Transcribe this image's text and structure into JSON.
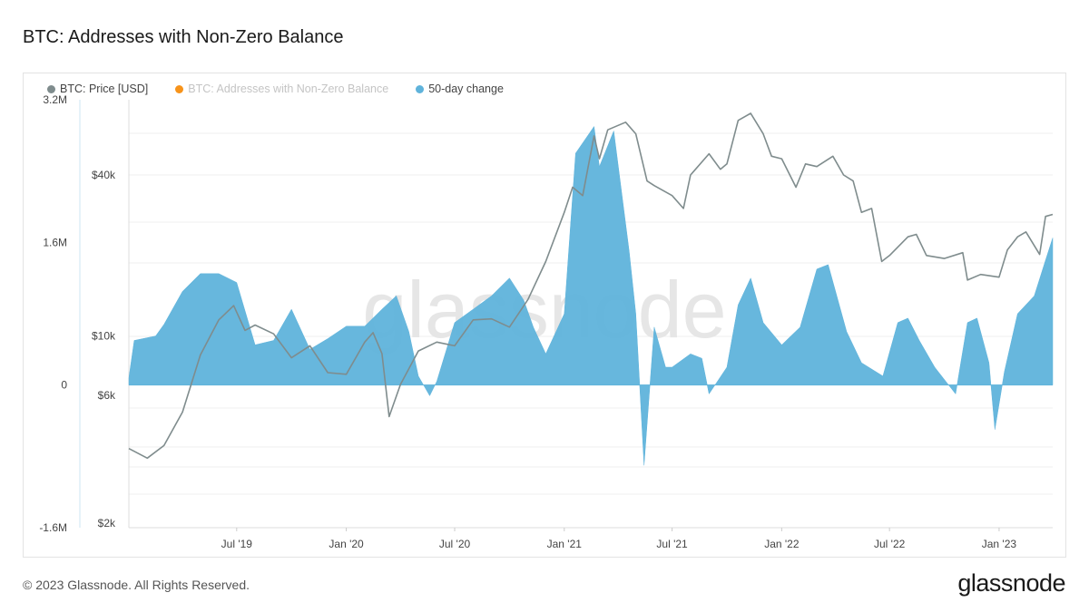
{
  "page": {
    "title": "BTC: Addresses with Non-Zero Balance",
    "copyright": "© 2023 Glassnode. All Rights Reserved.",
    "logo": "glassnode",
    "watermark": "glassnode"
  },
  "legend": [
    {
      "label": "BTC: Price [USD]",
      "color": "#7f8c8d",
      "state": "active"
    },
    {
      "label": "BTC: Addresses with Non-Zero Balance",
      "color": "#f7931a",
      "state": "hidden"
    },
    {
      "label": "50-day change",
      "color": "#5fb3db",
      "state": "active"
    }
  ],
  "chart_data": {
    "type": "area",
    "title": "BTC: Addresses with Non-Zero Balance",
    "x_range": [
      "2019-01-01",
      "2023-04-01"
    ],
    "x_ticks": [
      "Jul '19",
      "Jan '20",
      "Jul '20",
      "Jan '21",
      "Jul '21",
      "Jan '22",
      "Jul '22",
      "Jan '23"
    ],
    "y_left": {
      "ticks": [
        "-1.6M",
        "0",
        "1.6M",
        "3.2M"
      ],
      "tick_values": [
        -1600000,
        0,
        1600000,
        3200000
      ],
      "range": [
        -1600000,
        3200000
      ]
    },
    "y_right": {
      "scale": "log",
      "ticks": [
        "$2k",
        "$6k",
        "$10k",
        "$40k"
      ],
      "tick_values": [
        2000,
        6000,
        10000,
        40000
      ]
    },
    "series": [
      {
        "name": "BTC: Price [USD]",
        "axis": "right",
        "color": "#7f8c8d",
        "points": [
          [
            "2019-01-01",
            3800
          ],
          [
            "2019-02-01",
            3500
          ],
          [
            "2019-03-01",
            3900
          ],
          [
            "2019-04-01",
            5200
          ],
          [
            "2019-05-01",
            8500
          ],
          [
            "2019-06-01",
            11500
          ],
          [
            "2019-06-26",
            13000
          ],
          [
            "2019-07-15",
            10500
          ],
          [
            "2019-08-01",
            11000
          ],
          [
            "2019-09-01",
            10200
          ],
          [
            "2019-10-01",
            8300
          ],
          [
            "2019-11-01",
            9200
          ],
          [
            "2019-12-01",
            7300
          ],
          [
            "2020-01-01",
            7200
          ],
          [
            "2020-02-01",
            9500
          ],
          [
            "2020-02-15",
            10300
          ],
          [
            "2020-03-01",
            8600
          ],
          [
            "2020-03-13",
            5000
          ],
          [
            "2020-04-01",
            6600
          ],
          [
            "2020-05-01",
            8800
          ],
          [
            "2020-06-01",
            9500
          ],
          [
            "2020-07-01",
            9200
          ],
          [
            "2020-08-01",
            11500
          ],
          [
            "2020-09-01",
            11600
          ],
          [
            "2020-10-01",
            10800
          ],
          [
            "2020-11-01",
            13700
          ],
          [
            "2020-12-01",
            19000
          ],
          [
            "2021-01-01",
            29000
          ],
          [
            "2021-01-15",
            36000
          ],
          [
            "2021-02-01",
            33500
          ],
          [
            "2021-02-20",
            56000
          ],
          [
            "2021-03-01",
            46000
          ],
          [
            "2021-03-15",
            59000
          ],
          [
            "2021-04-14",
            63000
          ],
          [
            "2021-05-01",
            57000
          ],
          [
            "2021-05-20",
            38000
          ],
          [
            "2021-06-01",
            36500
          ],
          [
            "2021-07-01",
            33500
          ],
          [
            "2021-07-20",
            30000
          ],
          [
            "2021-08-01",
            40000
          ],
          [
            "2021-09-01",
            48000
          ],
          [
            "2021-09-20",
            42000
          ],
          [
            "2021-10-01",
            44000
          ],
          [
            "2021-10-20",
            64000
          ],
          [
            "2021-11-10",
            68000
          ],
          [
            "2021-12-01",
            57000
          ],
          [
            "2021-12-15",
            47000
          ],
          [
            "2022-01-01",
            46000
          ],
          [
            "2022-01-25",
            36000
          ],
          [
            "2022-02-10",
            44000
          ],
          [
            "2022-03-01",
            43000
          ],
          [
            "2022-03-28",
            47000
          ],
          [
            "2022-04-15",
            40000
          ],
          [
            "2022-05-01",
            38000
          ],
          [
            "2022-05-15",
            29000
          ],
          [
            "2022-06-01",
            30000
          ],
          [
            "2022-06-18",
            19000
          ],
          [
            "2022-07-01",
            20000
          ],
          [
            "2022-08-01",
            23500
          ],
          [
            "2022-08-15",
            24000
          ],
          [
            "2022-09-01",
            20000
          ],
          [
            "2022-10-01",
            19500
          ],
          [
            "2022-11-01",
            20500
          ],
          [
            "2022-11-09",
            16200
          ],
          [
            "2022-12-01",
            17000
          ],
          [
            "2023-01-01",
            16600
          ],
          [
            "2023-01-15",
            21000
          ],
          [
            "2023-02-01",
            23500
          ],
          [
            "2023-02-15",
            24500
          ],
          [
            "2023-03-10",
            20200
          ],
          [
            "2023-03-20",
            28000
          ],
          [
            "2023-04-01",
            28500
          ]
        ]
      },
      {
        "name": "50-day change",
        "axis": "left",
        "color": "#5fb3db",
        "points": [
          [
            "2019-01-01",
            80000
          ],
          [
            "2019-01-10",
            500000
          ],
          [
            "2019-02-15",
            550000
          ],
          [
            "2019-03-01",
            680000
          ],
          [
            "2019-04-01",
            1050000
          ],
          [
            "2019-05-01",
            1250000
          ],
          [
            "2019-06-01",
            1250000
          ],
          [
            "2019-07-01",
            1150000
          ],
          [
            "2019-08-01",
            450000
          ],
          [
            "2019-09-01",
            500000
          ],
          [
            "2019-10-01",
            850000
          ],
          [
            "2019-11-01",
            400000
          ],
          [
            "2019-12-01",
            520000
          ],
          [
            "2020-01-01",
            660000
          ],
          [
            "2020-02-01",
            660000
          ],
          [
            "2020-03-01",
            850000
          ],
          [
            "2020-03-25",
            1000000
          ],
          [
            "2020-04-15",
            600000
          ],
          [
            "2020-05-01",
            100000
          ],
          [
            "2020-05-20",
            -120000
          ],
          [
            "2020-06-01",
            40000
          ],
          [
            "2020-07-01",
            700000
          ],
          [
            "2020-08-01",
            850000
          ],
          [
            "2020-09-01",
            1000000
          ],
          [
            "2020-10-01",
            1200000
          ],
          [
            "2020-10-25",
            950000
          ],
          [
            "2020-11-10",
            650000
          ],
          [
            "2020-12-01",
            350000
          ],
          [
            "2021-01-01",
            800000
          ],
          [
            "2021-01-20",
            2600000
          ],
          [
            "2021-02-20",
            2900000
          ],
          [
            "2021-03-01",
            2450000
          ],
          [
            "2021-03-25",
            2850000
          ],
          [
            "2021-04-20",
            1500000
          ],
          [
            "2021-05-01",
            800000
          ],
          [
            "2021-05-15",
            -900000
          ],
          [
            "2021-06-01",
            650000
          ],
          [
            "2021-06-20",
            200000
          ],
          [
            "2021-07-01",
            200000
          ],
          [
            "2021-08-01",
            350000
          ],
          [
            "2021-08-20",
            300000
          ],
          [
            "2021-09-01",
            -100000
          ],
          [
            "2021-10-01",
            200000
          ],
          [
            "2021-10-20",
            900000
          ],
          [
            "2021-11-10",
            1200000
          ],
          [
            "2021-12-01",
            700000
          ],
          [
            "2022-01-01",
            450000
          ],
          [
            "2022-02-01",
            650000
          ],
          [
            "2022-03-01",
            1300000
          ],
          [
            "2022-03-20",
            1350000
          ],
          [
            "2022-04-20",
            600000
          ],
          [
            "2022-05-15",
            250000
          ],
          [
            "2022-06-20",
            100000
          ],
          [
            "2022-07-15",
            700000
          ],
          [
            "2022-08-01",
            750000
          ],
          [
            "2022-08-20",
            500000
          ],
          [
            "2022-09-15",
            200000
          ],
          [
            "2022-10-20",
            -100000
          ],
          [
            "2022-11-09",
            700000
          ],
          [
            "2022-11-25",
            750000
          ],
          [
            "2022-12-15",
            250000
          ],
          [
            "2022-12-25",
            -500000
          ],
          [
            "2023-01-10",
            150000
          ],
          [
            "2023-02-01",
            800000
          ],
          [
            "2023-03-01",
            1000000
          ],
          [
            "2023-03-20",
            1400000
          ],
          [
            "2023-04-01",
            1650000
          ]
        ]
      }
    ],
    "grid": true,
    "legend_position": "top-left"
  }
}
